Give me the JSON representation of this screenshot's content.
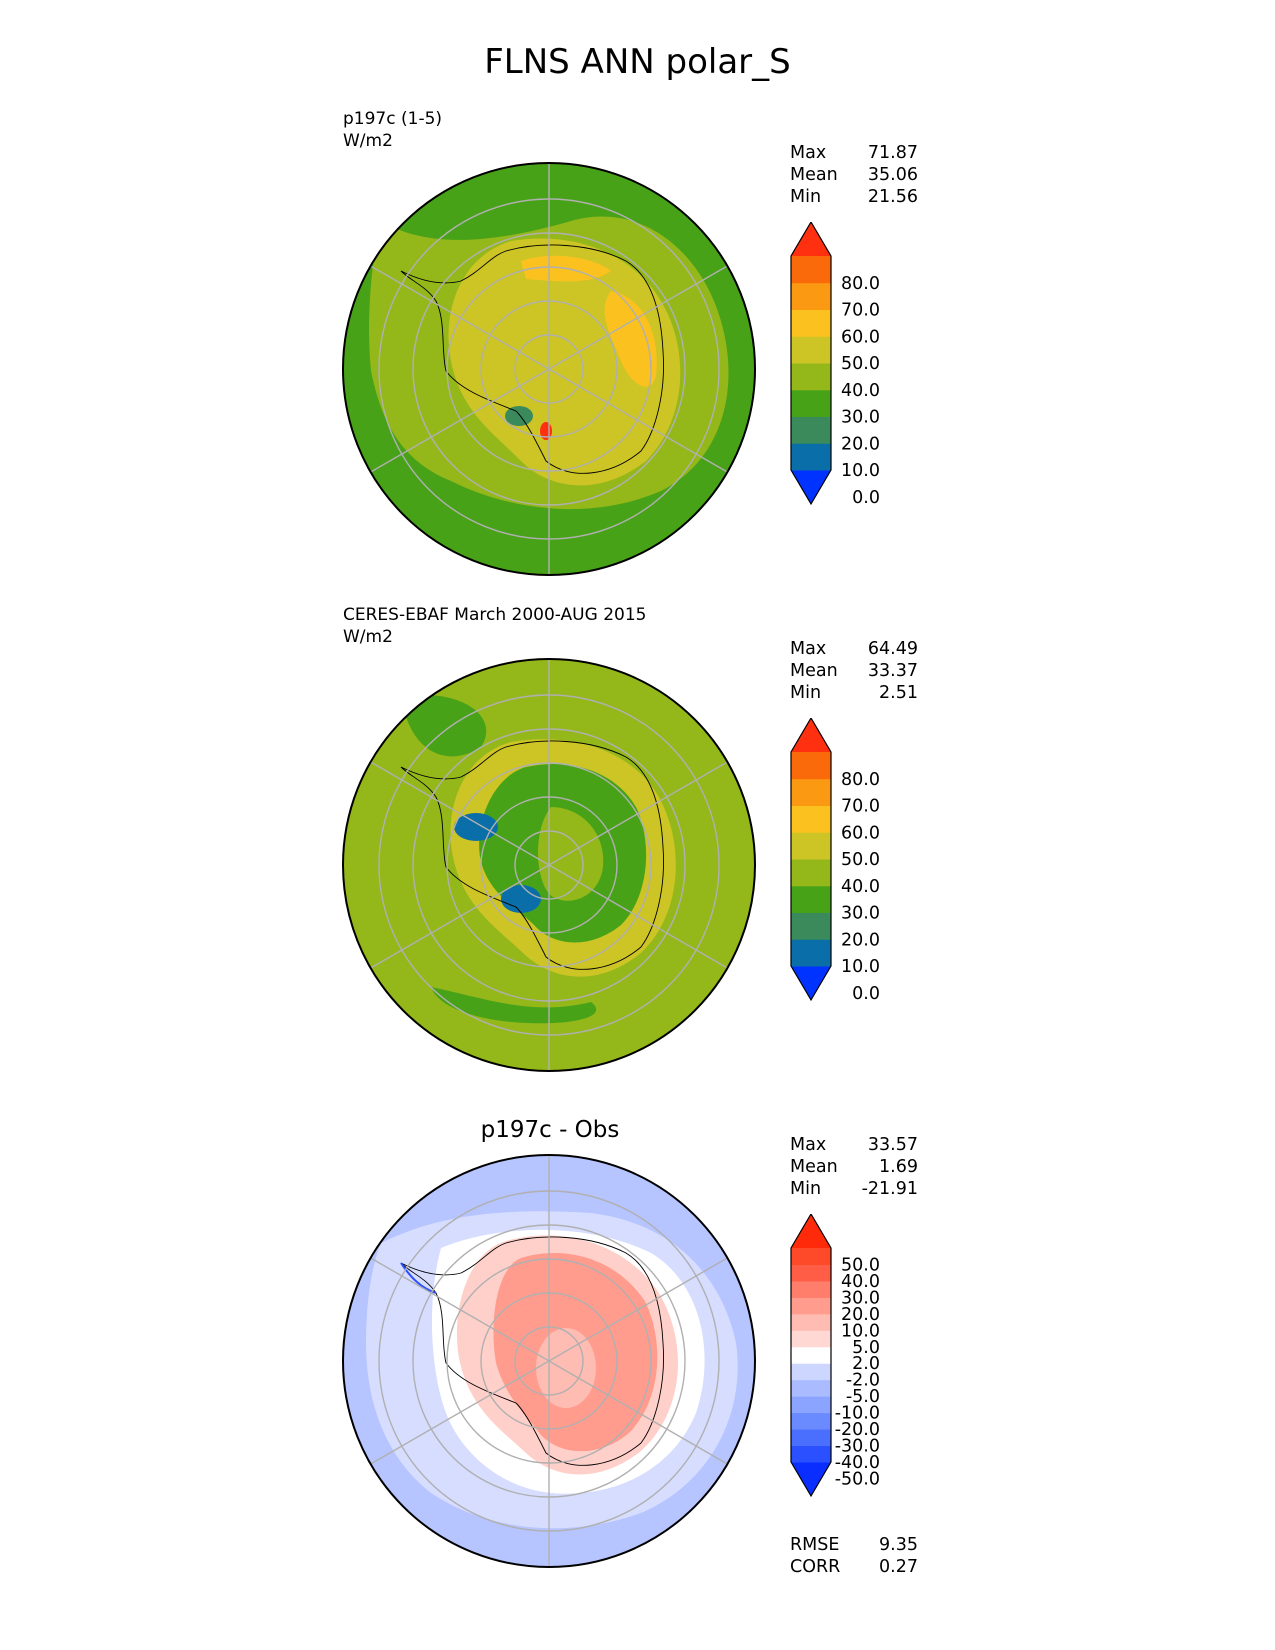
{
  "title": "FLNS ANN polar_S",
  "panels": [
    {
      "name": "test",
      "subtitle": "p197c (1-5)",
      "units": "W/m2",
      "stats": {
        "max_label": "Max",
        "max": "71.87",
        "mean_label": "Mean",
        "mean": "35.06",
        "min_label": "Min",
        "min": "21.56"
      }
    },
    {
      "name": "reference",
      "subtitle": "CERES-EBAF March 2000-AUG 2015",
      "units": "W/m2",
      "stats": {
        "max_label": "Max",
        "max": "64.49",
        "mean_label": "Mean",
        "mean": "33.37",
        "min_label": "Min",
        "min": "2.51"
      }
    },
    {
      "name": "difference",
      "title": "p197c - Obs",
      "stats": {
        "max_label": "Max",
        "max": "33.57",
        "mean_label": "Mean",
        "mean": "1.69",
        "min_label": "Min",
        "min": "-21.91"
      },
      "metrics": {
        "rmse_label": "RMSE",
        "rmse": "9.35",
        "corr_label": "CORR",
        "corr": "0.27"
      }
    }
  ],
  "chart_data": [
    {
      "type": "heatmap",
      "projection": "south polar stereographic",
      "title": "p197c (1-5)",
      "units": "W/m2",
      "max": 71.87,
      "mean": 35.06,
      "min": 21.56,
      "colorbar": {
        "levels": [
          0,
          10,
          20,
          30,
          40,
          50,
          60,
          70,
          80
        ],
        "tick_labels": [
          "80.0",
          "70.0",
          "60.0",
          "50.0",
          "40.0",
          "30.0",
          "20.0",
          "10.0",
          "0.0"
        ],
        "colors": [
          "#0033ff",
          "#0a6ea8",
          "#3a8a5c",
          "#47a218",
          "#94b71a",
          "#cdc425",
          "#fbc21f",
          "#fb9a12",
          "#fb6a0a",
          "#ff3010"
        ],
        "extend": "both"
      }
    },
    {
      "type": "heatmap",
      "projection": "south polar stereographic",
      "title": "CERES-EBAF March 2000-AUG 2015",
      "units": "W/m2",
      "max": 64.49,
      "mean": 33.37,
      "min": 2.51,
      "colorbar": {
        "levels": [
          0,
          10,
          20,
          30,
          40,
          50,
          60,
          70,
          80
        ],
        "tick_labels": [
          "80.0",
          "70.0",
          "60.0",
          "50.0",
          "40.0",
          "30.0",
          "20.0",
          "10.0",
          "0.0"
        ],
        "colors": [
          "#0033ff",
          "#0a6ea8",
          "#3a8a5c",
          "#47a218",
          "#94b71a",
          "#cdc425",
          "#fbc21f",
          "#fb9a12",
          "#fb6a0a",
          "#ff3010"
        ],
        "extend": "both"
      }
    },
    {
      "type": "heatmap",
      "projection": "south polar stereographic",
      "title": "p197c - Obs",
      "max": 33.57,
      "mean": 1.69,
      "min": -21.91,
      "rmse": 9.35,
      "corr": 0.27,
      "colorbar": {
        "levels": [
          -50,
          -40,
          -30,
          -20,
          -10,
          -5,
          -2,
          2,
          5,
          10,
          20,
          30,
          40,
          50
        ],
        "tick_labels": [
          "50.0",
          "40.0",
          "30.0",
          "20.0",
          "10.0",
          "5.0",
          "2.0",
          "-2.0",
          "-5.0",
          "-10.0",
          "-20.0",
          "-30.0",
          "-40.0",
          "-50.0"
        ],
        "colors": [
          "#0a2eff",
          "#2a50ff",
          "#4a6fff",
          "#6a8aff",
          "#8aa4ff",
          "#aabcff",
          "#cdd6ff",
          "#ffffff",
          "#ffd8d3",
          "#ffbcb2",
          "#ff9c8e",
          "#ff7d6b",
          "#ff5d45",
          "#ff4a2a",
          "#ff2a0a"
        ],
        "extend": "both"
      }
    }
  ]
}
